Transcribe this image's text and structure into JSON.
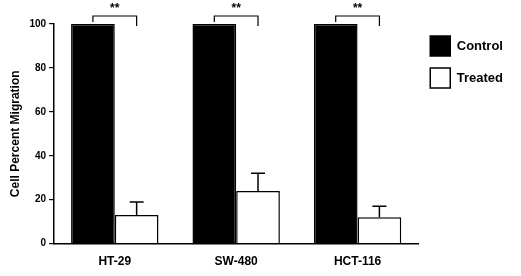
{
  "chart_data": {
    "type": "bar",
    "y_label": "Cell Percent Migration",
    "categories": [
      "HT-29",
      "SW-480",
      "HCT-116"
    ],
    "series": [
      {
        "name": "Control",
        "color": "#000000",
        "values": [
          100,
          100,
          100
        ]
      },
      {
        "name": "Treated",
        "color": "#ffffff",
        "values": [
          13,
          24,
          12
        ],
        "errors": [
          6,
          8,
          5
        ]
      }
    ],
    "ylim": [
      0,
      100
    ],
    "yticks": [
      0,
      20,
      40,
      60,
      80,
      100
    ],
    "grid": false,
    "legend": "right",
    "annotations": [
      {
        "text": "**",
        "category": "HT-29"
      },
      {
        "text": "**",
        "category": "SW-480"
      },
      {
        "text": "**",
        "category": "HCT-116"
      }
    ]
  }
}
